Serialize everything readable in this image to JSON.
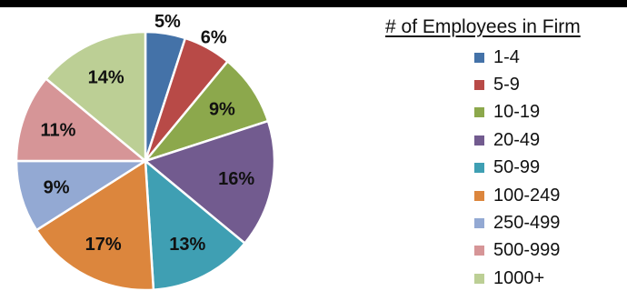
{
  "chart_data": {
    "type": "pie",
    "legend_title": "# of Employees in Firm",
    "legend_position": "right",
    "start_angle_deg": 0,
    "direction": "clockwise",
    "slices": [
      {
        "label": "1-4",
        "value": 5,
        "value_label": "5%",
        "color": "#4472a8"
      },
      {
        "label": "5-9",
        "value": 6,
        "value_label": "6%",
        "color": "#b84a47"
      },
      {
        "label": "10-19",
        "value": 9,
        "value_label": "9%",
        "color": "#8ca84c"
      },
      {
        "label": "20-49",
        "value": 16,
        "value_label": "16%",
        "color": "#725b8f"
      },
      {
        "label": "50-99",
        "value": 13,
        "value_label": "13%",
        "color": "#3f9fb3"
      },
      {
        "label": "100-249",
        "value": 17,
        "value_label": "17%",
        "color": "#dc863d"
      },
      {
        "label": "250-499",
        "value": 9,
        "value_label": "9%",
        "color": "#93a9d3"
      },
      {
        "label": "500-999",
        "value": 11,
        "value_label": "11%",
        "color": "#d69597"
      },
      {
        "label": "1000+",
        "value": 14,
        "value_label": "14%",
        "color": "#bccf95"
      }
    ]
  }
}
